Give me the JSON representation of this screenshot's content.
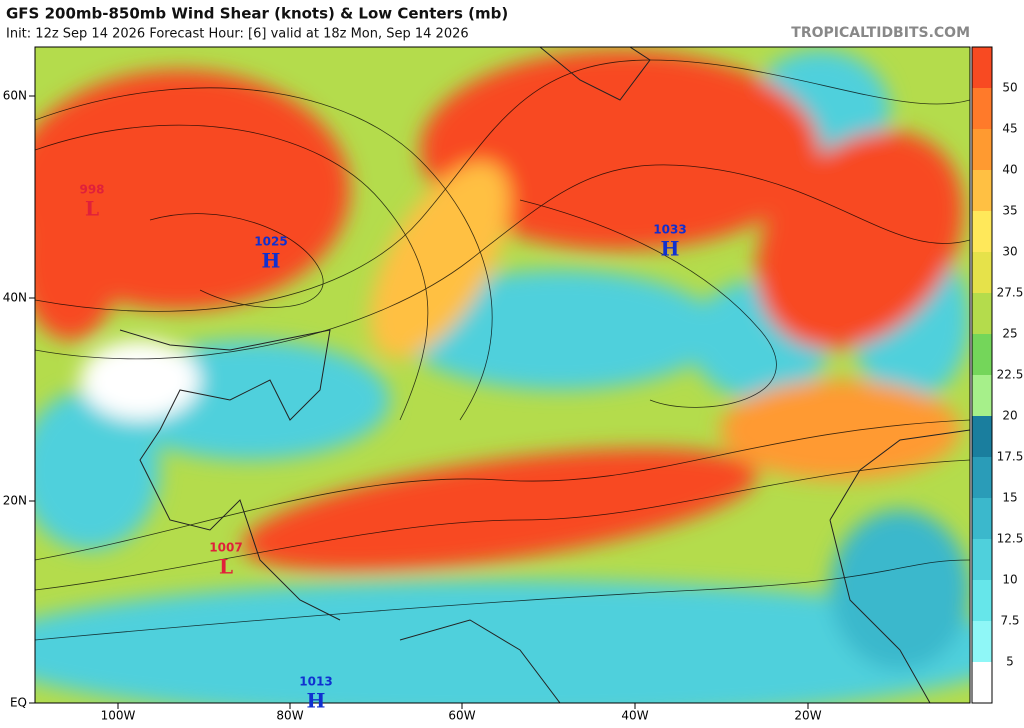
{
  "header": {
    "title": "GFS 200mb-850mb Wind Shear (knots) & Low Centers (mb)",
    "subtitle": "Init: 12z Sep 14 2026   Forecast Hour: [6]   valid at 18z Mon, Sep 14 2026",
    "source": "TROPICALTIDBITS.COM"
  },
  "colorbar": {
    "labels": [
      "5",
      "7.5",
      "10",
      "12.5",
      "15",
      "17.5",
      "20",
      "22.5",
      "25",
      "27.5",
      "30",
      "35",
      "40",
      "45",
      "50"
    ],
    "colors": [
      "#ffffff",
      "#8ff7f7",
      "#66e6ea",
      "#4fd0dc",
      "#3bb8cc",
      "#2a9cb8",
      "#1a7e9e",
      "#a6f08a",
      "#74d65a",
      "#b4dc4c",
      "#e6e24a",
      "#ffe85a",
      "#ffc043",
      "#ff9a30",
      "#ff7a2a",
      "#f84a22"
    ]
  },
  "latitude_labels": [
    "60N",
    "40N",
    "20N",
    "EQ"
  ],
  "longitude_labels": [
    "100W",
    "80W",
    "60W",
    "40W",
    "20W"
  ],
  "centers": [
    {
      "pressure": "998",
      "symbol": "L"
    },
    {
      "pressure": "1025",
      "symbol": "H"
    },
    {
      "pressure": "1033",
      "symbol": "H"
    },
    {
      "pressure": "1007",
      "symbol": "L"
    },
    {
      "pressure": "1013",
      "symbol": "H"
    }
  ]
}
